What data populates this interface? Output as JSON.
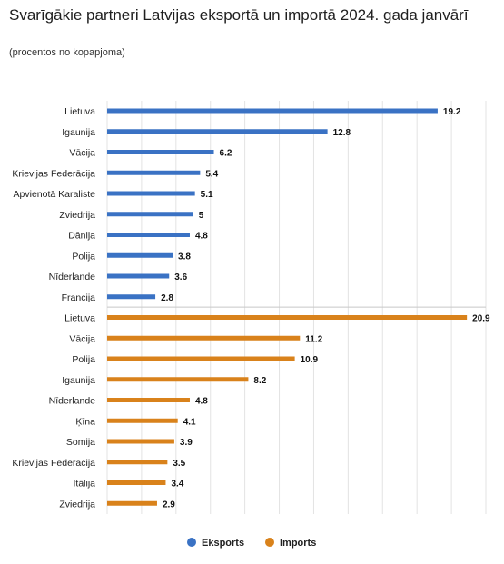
{
  "title": "Svarīgākie partneri Latvijas eksportā un importā 2024. gada janvārī",
  "subtitle": "(procentos no kopapjoma)",
  "colors": {
    "eksports": "#3a72c4",
    "imports": "#d9821b",
    "grid": "#e3e3e3",
    "divider": "#c8c8c8"
  },
  "chart_data": {
    "type": "bar",
    "orientation": "horizontal",
    "xlim": [
      0,
      22
    ],
    "grid": true,
    "legend_position": "bottom",
    "series": [
      {
        "name": "Eksports",
        "categories": [
          "Lietuva",
          "Igaunija",
          "Vācija",
          "Krievijas Federācija",
          "Apvienotā Karaliste",
          "Zviedrija",
          "Dānija",
          "Polija",
          "Nīderlande",
          "Francija"
        ],
        "values": [
          19.2,
          12.8,
          6.2,
          5.4,
          5.1,
          5,
          4.8,
          3.8,
          3.6,
          2.8
        ],
        "labels": [
          "19.2",
          "12.8",
          "6.2",
          "5.4",
          "5.1",
          "5",
          "4.8",
          "3.8",
          "3.6",
          "2.8"
        ]
      },
      {
        "name": "Imports",
        "categories": [
          "Lietuva",
          "Vācija",
          "Polija",
          "Igaunija",
          "Nīderlande",
          "Ķīna",
          "Somija",
          "Krievijas Federācija",
          "Itālija",
          "Zviedrija"
        ],
        "values": [
          20.9,
          11.2,
          10.9,
          8.2,
          4.8,
          4.1,
          3.9,
          3.5,
          3.4,
          2.9
        ],
        "labels": [
          "20.9",
          "11.2",
          "10.9",
          "8.2",
          "4.8",
          "4.1",
          "3.9",
          "3.5",
          "3.4",
          "2.9"
        ]
      }
    ]
  }
}
